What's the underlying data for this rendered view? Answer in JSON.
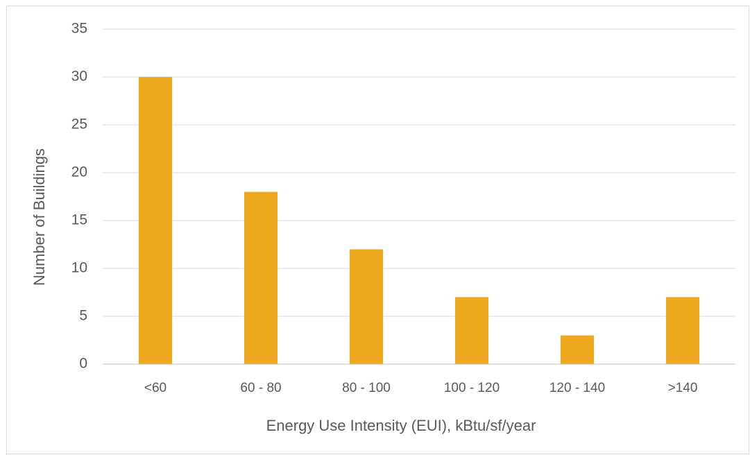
{
  "chart_data": {
    "type": "bar",
    "xlabel": "Energy Use Intensity (EUI), kBtu/sf/year",
    "ylabel": "Number of Buildings",
    "categories": [
      "<60",
      "60 - 80",
      "80 - 100",
      "100 - 120",
      "120 - 140",
      ">140"
    ],
    "values": [
      30,
      18,
      12,
      7,
      3,
      7
    ],
    "color": "#eea920",
    "ylim": [
      0,
      35
    ],
    "yticks": [
      0,
      5,
      10,
      15,
      20,
      25,
      30,
      35
    ],
    "grid": true
  }
}
